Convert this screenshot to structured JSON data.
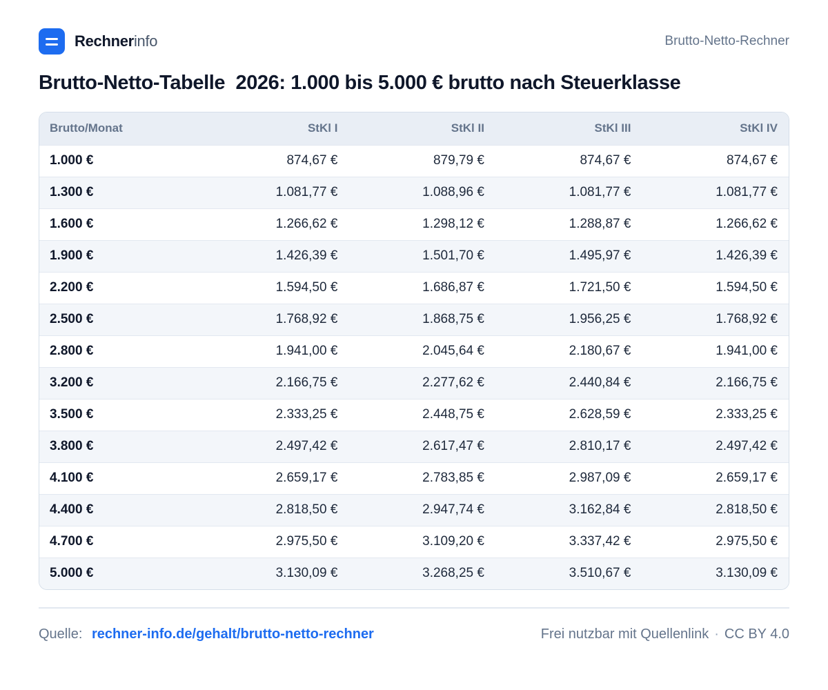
{
  "brand": {
    "name_bold": "Rechner",
    "name_light": "info",
    "logo_icon": "rechnerinfo-logo-icon",
    "accent": "#1d6cf0"
  },
  "header": {
    "right_label": "Brutto-Netto-Rechner"
  },
  "title": "Brutto-Netto-Tabelle  2026: 1.000 bis 5.000 € brutto nach Steuerklasse",
  "table": {
    "columns": [
      "Brutto/Monat",
      "StKl I",
      "StKl II",
      "StKl III",
      "StKl IV"
    ],
    "rows": [
      [
        "1.000 €",
        "874,67 €",
        "879,79 €",
        "874,67 €",
        "874,67 €"
      ],
      [
        "1.300 €",
        "1.081,77 €",
        "1.088,96 €",
        "1.081,77 €",
        "1.081,77 €"
      ],
      [
        "1.600 €",
        "1.266,62 €",
        "1.298,12 €",
        "1.288,87 €",
        "1.266,62 €"
      ],
      [
        "1.900 €",
        "1.426,39 €",
        "1.501,70 €",
        "1.495,97 €",
        "1.426,39 €"
      ],
      [
        "2.200 €",
        "1.594,50 €",
        "1.686,87 €",
        "1.721,50 €",
        "1.594,50 €"
      ],
      [
        "2.500 €",
        "1.768,92 €",
        "1.868,75 €",
        "1.956,25 €",
        "1.768,92 €"
      ],
      [
        "2.800 €",
        "1.941,00 €",
        "2.045,64 €",
        "2.180,67 €",
        "1.941,00 €"
      ],
      [
        "3.200 €",
        "2.166,75 €",
        "2.277,62 €",
        "2.440,84 €",
        "2.166,75 €"
      ],
      [
        "3.500 €",
        "2.333,25 €",
        "2.448,75 €",
        "2.628,59 €",
        "2.333,25 €"
      ],
      [
        "3.800 €",
        "2.497,42 €",
        "2.617,47 €",
        "2.810,17 €",
        "2.497,42 €"
      ],
      [
        "4.100 €",
        "2.659,17 €",
        "2.783,85 €",
        "2.987,09 €",
        "2.659,17 €"
      ],
      [
        "4.400 €",
        "2.818,50 €",
        "2.947,74 €",
        "3.162,84 €",
        "2.818,50 €"
      ],
      [
        "4.700 €",
        "2.975,50 €",
        "3.109,20 €",
        "3.337,42 €",
        "2.975,50 €"
      ],
      [
        "5.000 €",
        "3.130,09 €",
        "3.268,25 €",
        "3.510,67 €",
        "3.130,09 €"
      ]
    ]
  },
  "footer": {
    "source_label": "Quelle:",
    "source_link": "rechner-info.de/gehalt/brutto-netto-rechner",
    "license_text": "Frei nutzbar mit Quellenlink",
    "separator": "·",
    "license": "CC BY 4.0"
  }
}
